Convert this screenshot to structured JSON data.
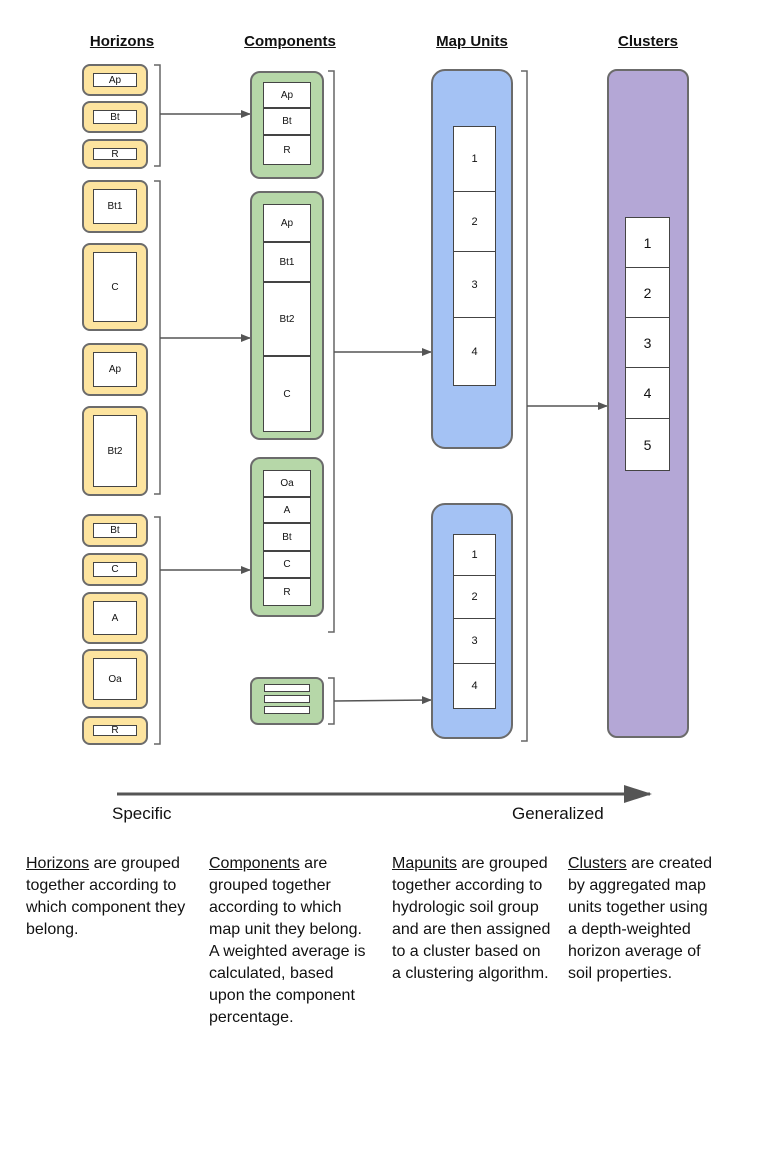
{
  "headers": {
    "horizons": "Horizons",
    "components": "Components",
    "map_units": "Map Units",
    "clusters": "Clusters"
  },
  "horizons": [
    "Ap",
    "Bt",
    "R",
    "Bt1",
    "C",
    "Ap",
    "Bt2",
    "Bt",
    "C",
    "A",
    "Oa",
    "R"
  ],
  "components": {
    "comp1": [
      "Ap",
      "Bt",
      "R"
    ],
    "comp2": [
      "Ap",
      "Bt1",
      "Bt2",
      "C"
    ],
    "comp3": [
      "Oa",
      "A",
      "Bt",
      "C",
      "R"
    ]
  },
  "map_units": {
    "mu1": [
      "1",
      "2",
      "3",
      "4"
    ],
    "mu2": [
      "1",
      "2",
      "3",
      "4"
    ]
  },
  "clusters": [
    "1",
    "2",
    "3",
    "4",
    "5"
  ],
  "axis": {
    "left": "Specific",
    "right": "Generalized"
  },
  "descriptions": {
    "horizons": {
      "keyword": "Horizons",
      "text": " are grouped together according to which component they belong."
    },
    "components": {
      "keyword": "Components",
      "text": " are grouped together according to which map unit they belong. A weighted average is calculated, based upon the component percentage."
    },
    "mapunits": {
      "keyword": "Mapunits",
      "text": " are grouped together according to hydrologic soil group  and are then assigned to a cluster based on a clustering algorithm."
    },
    "clusters": {
      "keyword": "Clusters",
      "text": " are created by aggregated map units together using a depth-weighted horizon average of soil properties."
    }
  },
  "colors": {
    "horizon_fill": "#fde49f",
    "component_fill": "#b6d7a8",
    "mapunit_fill": "#a4c2f4",
    "cluster_fill": "#b4a7d6",
    "stroke": "#6b6b6b"
  }
}
